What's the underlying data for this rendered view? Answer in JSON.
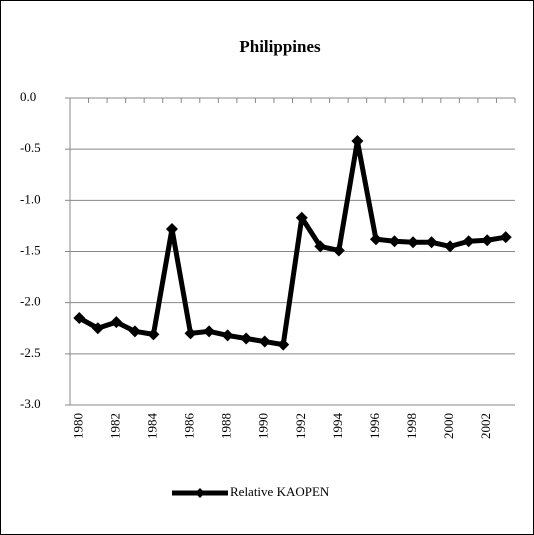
{
  "chart_data": {
    "type": "line",
    "title": "Philippines",
    "categories": [
      "1980",
      null,
      "1982",
      null,
      "1984",
      null,
      "1986",
      null,
      "1988",
      null,
      "1990",
      null,
      "1992",
      null,
      "1994",
      null,
      "1996",
      null,
      "1998",
      null,
      "2000",
      null,
      "2002",
      null
    ],
    "series": [
      {
        "name": "Relative KAOPEN",
        "color": "#000000",
        "values": [
          -2.15,
          -2.25,
          -2.19,
          -2.28,
          -2.31,
          -1.28,
          -2.3,
          -2.28,
          -2.32,
          -2.35,
          -2.38,
          -2.41,
          -1.17,
          -1.45,
          -1.49,
          -0.42,
          -1.38,
          -1.4,
          -1.41,
          -1.41,
          -1.45,
          -1.4,
          -1.39,
          -1.36
        ]
      }
    ],
    "ylim": [
      -3.0,
      0
    ],
    "yticks": [
      {
        "value": 0,
        "label": "0.0"
      },
      -0.5,
      {
        "value": -1,
        "label": "-1.0"
      },
      -1.5,
      {
        "value": -2,
        "label": "-2.0"
      },
      -2.5,
      {
        "value": -3,
        "label": "-3.0"
      }
    ],
    "grid": true,
    "legend": "bottom"
  }
}
